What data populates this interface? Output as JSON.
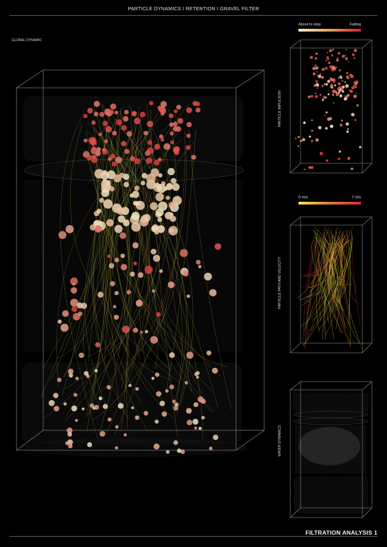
{
  "header": {
    "title": "PARTICLE DYNAMICS I RETENTION I GRAVEL FILTER"
  },
  "main": {
    "label": "GLOBAL DYNAMIC"
  },
  "panels": [
    {
      "label": "PARTICLE IMPULSION",
      "legend_left": "About to stop",
      "legend_right": "Falling",
      "legend_colors": [
        "#f2eccc",
        "#e8a15a",
        "#cc2233"
      ]
    },
    {
      "label": "PARTICLE PATH AND VELOCITY",
      "legend_left": "0 m/s",
      "legend_right": "7 m/s",
      "legend_colors": [
        "#f5e94a",
        "#e07a3a",
        "#d02a3a"
      ]
    },
    {
      "label": "WATER DYNAMICS"
    }
  ],
  "footer": {
    "title": "FILTRATION ANALYSIS 1"
  },
  "colors": {
    "particle_falling": "#d63a3a",
    "particle_stopping": "#efe6c0",
    "path": "#b9c43a",
    "wireframe": "#8a8a8a"
  }
}
